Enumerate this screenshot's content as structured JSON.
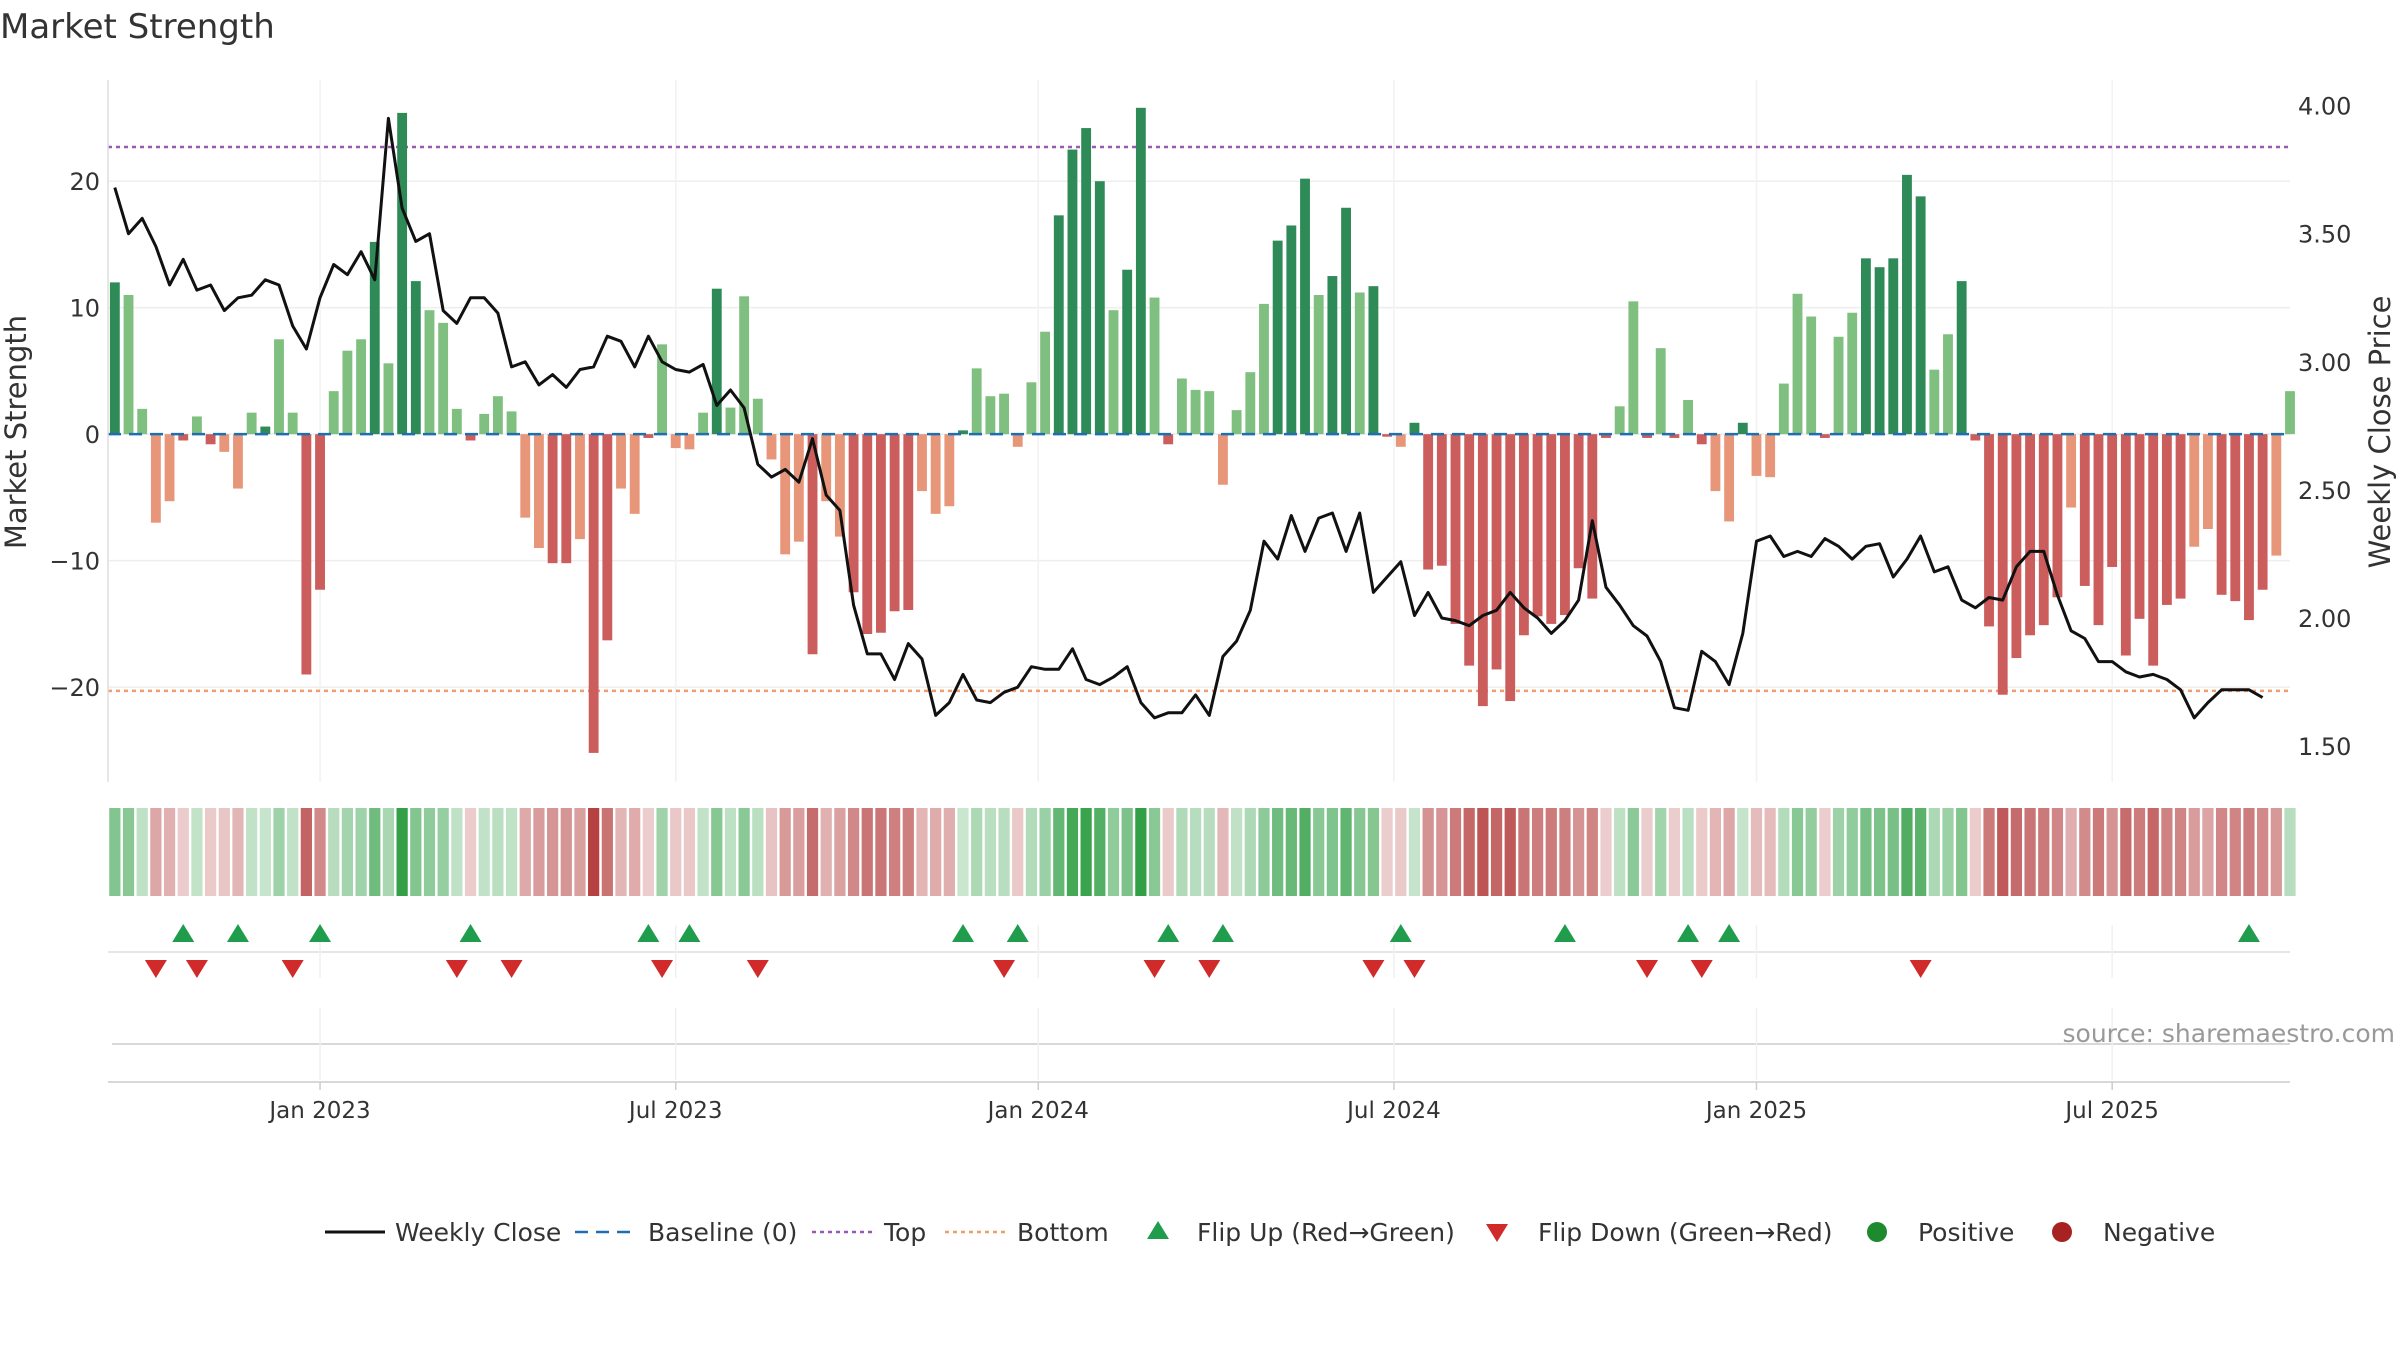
{
  "chart_data": {
    "type": "bar",
    "title": "Market Strength",
    "source": "source: sharemaestro.com",
    "ylabel_left": "Market Strength",
    "ylabel_right": "Weekly Close Price",
    "ylim_left": [
      -27.5,
      28
    ],
    "ylim_right": [
      1.36,
      4.1
    ],
    "yticks_left": [
      -20,
      -10,
      0,
      10,
      20
    ],
    "ytick_labels_left": [
      "−20",
      "−10",
      "0",
      "10",
      "20"
    ],
    "yticks_right": [
      1.5,
      2.0,
      2.5,
      3.0,
      3.5,
      4.0
    ],
    "ytick_labels_right": [
      "1.50",
      "2.00",
      "2.50",
      "3.00",
      "3.50",
      "4.00"
    ],
    "x_tick_labels": [
      "Jan 2023",
      "Jul 2023",
      "Jan 2024",
      "Jul 2024",
      "Jan 2025",
      "Jul 2025"
    ],
    "x_tick_weeks": [
      15,
      41,
      67.5,
      93.5,
      120,
      146
    ],
    "top_line": 22.7,
    "bottom_line": -20.3,
    "strength": [
      12,
      11,
      2,
      -7,
      -5.3,
      -0.5,
      1.4,
      -0.8,
      -1.4,
      -4.3,
      1.7,
      0.6,
      7.5,
      1.7,
      -19,
      -12.3,
      3.4,
      6.6,
      7.5,
      15.2,
      5.6,
      25.4,
      12.1,
      9.8,
      8.8,
      2,
      -0.5,
      1.6,
      3,
      1.8,
      -6.6,
      -9,
      -10.2,
      -10.2,
      -8.3,
      -25.2,
      -16.3,
      -4.3,
      -6.3,
      -0.3,
      7.1,
      -1.1,
      -1.2,
      1.7,
      11.5,
      2.1,
      10.9,
      2.8,
      -2,
      -9.5,
      -8.5,
      -17.4,
      -5.3,
      -8.1,
      -12.5,
      -15.8,
      -15.7,
      -14,
      -13.9,
      -4.5,
      -6.3,
      -5.7,
      0.3,
      5.2,
      3,
      3.2,
      -1,
      4.1,
      8.1,
      17.3,
      22.5,
      24.2,
      20,
      9.8,
      13,
      25.8,
      10.8,
      -0.8,
      4.4,
      3.5,
      3.4,
      -4,
      1.9,
      4.9,
      10.3,
      15.3,
      16.5,
      20.2,
      11,
      12.5,
      17.9,
      11.2,
      11.7,
      -0.2,
      -1,
      0.9,
      -10.7,
      -10.4,
      -15,
      -18.3,
      -21.5,
      -18.6,
      -21.1,
      -15.9,
      -14.4,
      -15,
      -14.3,
      -10.6,
      -13,
      -0.3,
      2.2,
      10.5,
      -0.3,
      6.8,
      -0.3,
      2.7,
      -0.8,
      -4.5,
      -6.9,
      0.9,
      -3.3,
      -3.4,
      4,
      11.1,
      9.3,
      -0.3,
      7.7,
      9.6,
      13.9,
      13.2,
      13.9,
      20.5,
      18.8,
      5.1,
      7.9,
      12.1,
      -0.5,
      -15.2,
      -20.6,
      -17.7,
      -15.9,
      -15.1,
      -12.9,
      -5.8,
      -12,
      -15.1,
      -10.5,
      -17.5,
      -14.6,
      -18.3,
      -13.5,
      -13,
      -8.9,
      -7.5,
      -12.7,
      -13.2,
      -14.7,
      -12.3,
      -9.6,
      3.4
    ],
    "close": [
      3.68,
      3.5,
      3.56,
      3.45,
      3.3,
      3.4,
      3.28,
      3.3,
      3.2,
      3.25,
      3.26,
      3.32,
      3.3,
      3.14,
      3.05,
      3.25,
      3.38,
      3.34,
      3.43,
      3.32,
      3.95,
      3.6,
      3.47,
      3.5,
      3.2,
      3.15,
      3.25,
      3.25,
      3.19,
      2.98,
      3,
      2.91,
      2.95,
      2.9,
      2.97,
      2.98,
      3.1,
      3.08,
      2.98,
      3.1,
      3.0,
      2.97,
      2.96,
      2.99,
      2.83,
      2.89,
      2.82,
      2.6,
      2.55,
      2.58,
      2.53,
      2.7,
      2.48,
      2.42,
      2.05,
      1.86,
      1.86,
      1.76,
      1.9,
      1.84,
      1.62,
      1.67,
      1.78,
      1.68,
      1.67,
      1.71,
      1.73,
      1.81,
      1.8,
      1.8,
      1.88,
      1.76,
      1.74,
      1.77,
      1.81,
      1.67,
      1.61,
      1.63,
      1.63,
      1.7,
      1.62,
      1.85,
      1.91,
      2.03,
      2.3,
      2.23,
      2.4,
      2.26,
      2.39,
      2.41,
      2.26,
      2.41,
      2.1,
      2.16,
      2.22,
      2.01,
      2.1,
      2.0,
      1.99,
      1.97,
      2.01,
      2.03,
      2.1,
      2.04,
      2.0,
      1.94,
      1.99,
      2.07,
      2.38,
      2.12,
      2.05,
      1.97,
      1.93,
      1.83,
      1.65,
      1.64,
      1.87,
      1.83,
      1.74,
      1.94,
      2.3,
      2.32,
      2.24,
      2.26,
      2.24,
      2.31,
      2.28,
      2.23,
      2.28,
      2.29,
      2.16,
      2.23,
      2.32,
      2.18,
      2.2,
      2.07,
      2.04,
      2.08,
      2.07,
      2.2,
      2.26,
      2.26,
      2.09,
      1.95,
      1.92,
      1.83,
      1.83,
      1.79,
      1.77,
      1.78,
      1.76,
      1.72,
      1.61,
      1.67,
      1.72,
      1.72,
      1.72,
      1.69
    ],
    "flip_up_weeks": [
      5,
      9,
      15,
      26,
      39,
      42,
      62,
      66,
      77,
      81,
      94,
      106,
      115,
      118,
      156
    ],
    "flip_down_weeks": [
      3,
      6,
      13,
      25,
      29,
      40,
      47,
      65,
      76,
      80,
      92,
      95,
      112,
      116,
      132
    ],
    "legend": [
      "Weekly Close",
      "Baseline (0)",
      "Top",
      "Bottom",
      "Flip Up (Red→Green)",
      "Flip Down (Green→Red)",
      "Positive",
      "Negative"
    ],
    "colors": {
      "strong_up": "#2e8a57",
      "weak_up": "#7fbf7f",
      "strong_down": "#cb5d5d",
      "weak_down": "#e8967a",
      "close_line": "#111111",
      "baseline": "#1f6fb0",
      "top": "#9b59b6",
      "bottom": "#f39c6b",
      "flip_up": "#1f9d4c",
      "flip_down": "#d12a2a",
      "positive": "#1e8a2e",
      "negative": "#a82222"
    }
  }
}
